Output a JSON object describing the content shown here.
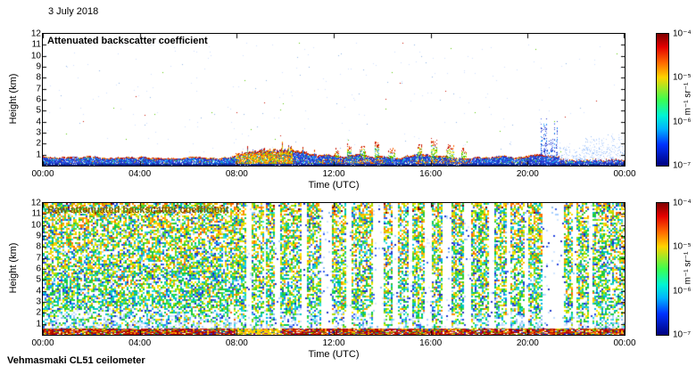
{
  "figure": {
    "date": "3 July 2018",
    "instrument": "Vehmasmaki CL51 ceilometer",
    "background_color": "#ffffff"
  },
  "chart_data": [
    {
      "type": "heatmap",
      "title": "Attenuated backscatter coefficient",
      "title_color": "#000000",
      "xlabel": "Time (UTC)",
      "ylabel": "Height (km)",
      "x_ticks": [
        "00:00",
        "04:00",
        "08:00",
        "12:00",
        "16:00",
        "20:00",
        "00:00"
      ],
      "x_range_hours": [
        0,
        24
      ],
      "y_ticks": [
        "12",
        "11",
        "10",
        "9",
        "8",
        "7",
        "6",
        "5",
        "4",
        "3",
        "2",
        "1"
      ],
      "y_range_km": [
        0,
        12
      ],
      "grid": false,
      "colorbar": {
        "unit": "m⁻¹ sr⁻¹",
        "tick_labels": [
          "10⁻⁴",
          "10⁻⁵",
          "10⁻⁶",
          "10⁻⁷"
        ],
        "scale": "log",
        "min": 1e-07,
        "max": 0.0001,
        "colormap": "jet",
        "stops": [
          [
            "#7f0000",
            0
          ],
          [
            "#e40000",
            0.1
          ],
          [
            "#ff6a00",
            0.22
          ],
          [
            "#ffd300",
            0.33
          ],
          [
            "#3cff50",
            0.5
          ],
          [
            "#00f5d4",
            0.62
          ],
          [
            "#00b4ff",
            0.72
          ],
          [
            "#0032ff",
            0.84
          ],
          [
            "#00007f",
            1
          ]
        ]
      },
      "features": {
        "boundary_layer_top_km": [
          0.6,
          1.1
        ],
        "convective_plume": {
          "from": 0.33,
          "to": 0.47,
          "top_km": 1.9
        },
        "warm_bands": [
          [
            0.47,
            0.585
          ],
          [
            0.64,
            0.735
          ]
        ],
        "cloud_spikes": [
          {
            "t": 0.505,
            "w": 0.006,
            "top_km": 1.5
          },
          {
            "t": 0.527,
            "w": 0.005,
            "top_km": 1.9
          },
          {
            "t": 0.55,
            "w": 0.008,
            "top_km": 1.7
          },
          {
            "t": 0.575,
            "w": 0.006,
            "top_km": 2.1
          },
          {
            "t": 0.6,
            "w": 0.01,
            "top_km": 1.6
          },
          {
            "t": 0.648,
            "w": 0.007,
            "top_km": 1.8
          },
          {
            "t": 0.672,
            "w": 0.009,
            "top_km": 2.3
          },
          {
            "t": 0.7,
            "w": 0.012,
            "top_km": 1.9
          },
          {
            "t": 0.724,
            "w": 0.007,
            "top_km": 1.5
          }
        ],
        "precip_streaks": {
          "from": 0.856,
          "to": 0.887,
          "top_km": 4.8
        },
        "pale_region": {
          "from": 0.887,
          "to": 1.0,
          "top_km": 1.9
        }
      },
      "summary": "Aerosol boundary layer below ~1-2 km all day; stronger convective backscatter 08:00-11:00; shallow cloud spikes 12:00-17:30; precipitation/virga streaks to ~5 km around 20:30-21:15; thin pale residual layer afterwards."
    },
    {
      "type": "heatmap",
      "title": "Raw attenuated backscatter coefficient",
      "title_color": "#7d6608",
      "xlabel": "Time (UTC)",
      "ylabel": "Height (km)",
      "x_ticks": [
        "00:00",
        "04:00",
        "08:00",
        "12:00",
        "16:00",
        "20:00",
        "00:00"
      ],
      "x_range_hours": [
        0,
        24
      ],
      "y_ticks": [
        "12",
        "11",
        "10",
        "9",
        "8",
        "7",
        "6",
        "5",
        "4",
        "3",
        "2",
        "1"
      ],
      "y_range_km": [
        0,
        12
      ],
      "grid": false,
      "colorbar": {
        "unit": "m⁻¹ sr⁻¹",
        "tick_labels": [
          "10⁻⁴",
          "10⁻⁵",
          "10⁻⁶",
          "10⁻⁷"
        ],
        "scale": "log",
        "min": 1e-07,
        "max": 0.0001,
        "colormap": "jet",
        "stops": [
          [
            "#7f0000",
            0
          ],
          [
            "#e40000",
            0.1
          ],
          [
            "#ff6a00",
            0.22
          ],
          [
            "#ffd300",
            0.33
          ],
          [
            "#3cff50",
            0.5
          ],
          [
            "#00f5d4",
            0.62
          ],
          [
            "#00b4ff",
            0.72
          ],
          [
            "#0032ff",
            0.84
          ],
          [
            "#00007f",
            1
          ]
        ]
      },
      "features": {
        "surface_layer_km": 0.55,
        "surface_warm_patch": [
          0.33,
          0.41
        ],
        "gaps": [
          [
            0.347,
            0.356
          ],
          [
            0.378,
            0.383
          ],
          [
            0.398,
            0.406
          ],
          [
            0.444,
            0.451
          ],
          [
            0.476,
            0.494
          ],
          [
            0.519,
            0.53
          ],
          [
            0.565,
            0.584
          ],
          [
            0.601,
            0.61
          ],
          [
            0.628,
            0.633
          ],
          [
            0.655,
            0.666
          ],
          [
            0.686,
            0.7
          ],
          [
            0.721,
            0.736
          ],
          [
            0.766,
            0.776
          ],
          [
            0.795,
            0.801
          ],
          [
            0.828,
            0.833
          ],
          [
            0.856,
            0.895
          ],
          [
            0.909,
            0.916
          ],
          [
            0.936,
            0.944
          ]
        ]
      },
      "summary": "Uncalibrated raw profile dominated by speckle noise increasing with range (warmer colours aloft, pale blue band near 1-2 km); vertical white bands where the signal is attenuated; strong surface/aerosol return below ~0.5 km."
    }
  ]
}
